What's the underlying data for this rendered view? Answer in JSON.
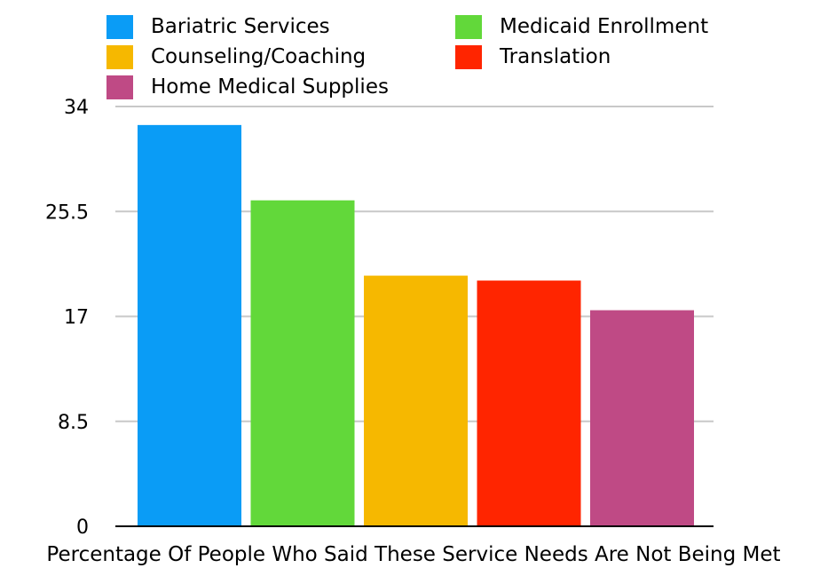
{
  "chart_data": {
    "type": "bar",
    "xlabel": "Percentage Of People Who Said These Service Needs Are Not Being Met",
    "ylabel": "",
    "ylim": [
      0,
      34
    ],
    "yticks": [
      "0",
      "8.5",
      "17",
      "25.5",
      "34"
    ],
    "grid": true,
    "legend_position": "top",
    "series": [
      {
        "name": "Bariatric Services",
        "value": 32.5,
        "color": "#0a9cf6"
      },
      {
        "name": "Medicaid Enrollment",
        "value": 26.4,
        "color": "#62d83a"
      },
      {
        "name": "Counseling/Coaching",
        "value": 20.3,
        "color": "#f6b800"
      },
      {
        "name": "Translation",
        "value": 19.9,
        "color": "#ff2500"
      },
      {
        "name": "Home Medical Supplies",
        "value": 17.5,
        "color": "#bf4a85"
      }
    ]
  }
}
